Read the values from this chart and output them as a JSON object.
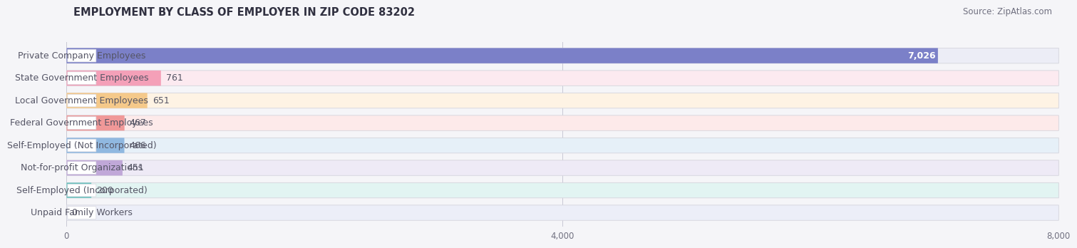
{
  "title": "EMPLOYMENT BY CLASS OF EMPLOYER IN ZIP CODE 83202",
  "source": "Source: ZipAtlas.com",
  "categories": [
    "Private Company Employees",
    "State Government Employees",
    "Local Government Employees",
    "Federal Government Employees",
    "Self-Employed (Not Incorporated)",
    "Not-for-profit Organizations",
    "Self-Employed (Incorporated)",
    "Unpaid Family Workers"
  ],
  "values": [
    7026,
    761,
    651,
    467,
    466,
    451,
    200,
    0
  ],
  "bar_colors": [
    "#7b80c8",
    "#f4a0b8",
    "#f5c98a",
    "#f09898",
    "#90b8e0",
    "#c0a8d8",
    "#68c0bc",
    "#b0b8e0"
  ],
  "bar_bg_colors": [
    "#ecedf6",
    "#fceaf0",
    "#fef3e4",
    "#fdeaea",
    "#e6f0f8",
    "#eeeaf6",
    "#e2f4f2",
    "#eceef8"
  ],
  "value_label_colors": [
    "#ffffff",
    "#606070",
    "#606070",
    "#606070",
    "#606070",
    "#606070",
    "#606070",
    "#606070"
  ],
  "value_inside": [
    true,
    false,
    false,
    false,
    false,
    false,
    false,
    false
  ],
  "xlim": [
    0,
    8000
  ],
  "xticks": [
    0,
    4000,
    8000
  ],
  "xticklabels": [
    "0",
    "4,000",
    "8,000"
  ],
  "background_color": "#f5f5f8",
  "title_fontsize": 10.5,
  "source_fontsize": 8.5,
  "label_fontsize": 9,
  "value_fontsize": 9
}
